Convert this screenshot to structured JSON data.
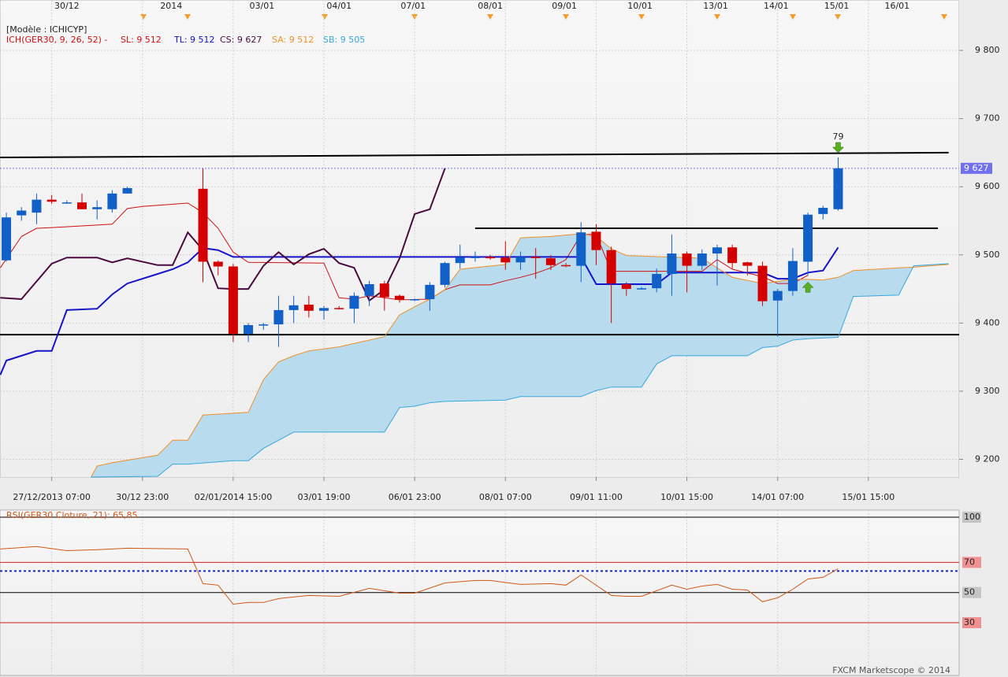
{
  "chart_data": [
    {
      "type": "candlestick",
      "model_label": "[Modèle : ICHICYP]",
      "indicator_label": "ICH(GER30, 9, 26, 52) -",
      "xlim": [
        -0.42,
        63
      ],
      "ylim": [
        9174,
        9874
      ],
      "yticks": [
        {
          "value": 9200,
          "label": "9 200"
        },
        {
          "value": 9300,
          "label": "9 300"
        },
        {
          "value": 9400,
          "label": "9 400"
        },
        {
          "value": 9500,
          "label": "9 500"
        },
        {
          "value": 9600,
          "label": "9 600"
        },
        {
          "value": 9700,
          "label": "9 700"
        },
        {
          "value": 9800,
          "label": "9 800"
        }
      ],
      "xticks": [
        {
          "value": 3,
          "label": "27/12/2013 07:00"
        },
        {
          "value": 9,
          "label": "30/12 23:00"
        },
        {
          "value": 15,
          "label": "02/01/2014 15:00"
        },
        {
          "value": 21,
          "label": "03/01 19:00"
        },
        {
          "value": 27,
          "label": "06/01 23:00"
        },
        {
          "value": 33,
          "label": "08/01 07:00"
        },
        {
          "value": 39,
          "label": "09/01 11:00"
        },
        {
          "value": 45,
          "label": "10/01 15:00"
        },
        {
          "value": 51,
          "label": "14/01 07:00"
        },
        {
          "value": 57,
          "label": "15/01 15:00"
        }
      ],
      "top_labels": [
        {
          "value": 4,
          "label": "30/12"
        },
        {
          "value": 10.9,
          "label": "2014"
        },
        {
          "value": 16.9,
          "label": "03/01"
        },
        {
          "value": 22,
          "label": "04/01"
        },
        {
          "value": 26.9,
          "label": "07/01"
        },
        {
          "value": 32,
          "label": "08/01"
        },
        {
          "value": 36.9,
          "label": "09/01"
        },
        {
          "value": 41.9,
          "label": "10/01"
        },
        {
          "value": 46.9,
          "label": "13/01"
        },
        {
          "value": 50.9,
          "label": "14/01"
        },
        {
          "value": 54.9,
          "label": "15/01"
        },
        {
          "value": 58.9,
          "label": "16/01"
        }
      ],
      "grid": true,
      "candles": {
        "up_color": "#1060c8",
        "down_color": "#d40000",
        "x": [
          0,
          1,
          2,
          3,
          4,
          5,
          6,
          7,
          8,
          13,
          14,
          15,
          16,
          17,
          18,
          19,
          20,
          21,
          22,
          23,
          24,
          25,
          26,
          27,
          28,
          29,
          30,
          31,
          32,
          33,
          34,
          35,
          36,
          37,
          38,
          39,
          40,
          41,
          42,
          43,
          44,
          45,
          46,
          47,
          48,
          49,
          50,
          51,
          52,
          53,
          54,
          55
        ],
        "open": [
          9492,
          9558,
          9562,
          9581,
          9577,
          9577,
          9567,
          9567,
          9590,
          9597,
          9490,
          9483,
          9384,
          9397,
          9398,
          9419,
          9427,
          9418,
          9422,
          9421,
          9440,
          9458,
          9440,
          9434,
          9435,
          9456,
          9488,
          9496,
          9497,
          9496,
          9489,
          9497,
          9495,
          9485,
          9484,
          9534,
          9507,
          9457,
          9451,
          9451,
          9472,
          9502,
          9484,
          9502,
          9511,
          9489,
          9484,
          9433,
          9447,
          9490,
          9560,
          9567
        ],
        "high": [
          9562,
          9570,
          9590,
          9588,
          9580,
          9590,
          9580,
          9595,
          9600,
          9627,
          9492,
          9487,
          9400,
          9400,
          9440,
          9440,
          9440,
          9425,
          9425,
          9445,
          9462,
          9462,
          9442,
          9436,
          9460,
          9490,
          9515,
          9505,
          9500,
          9520,
          9505,
          9510,
          9500,
          9488,
          9548,
          9545,
          9512,
          9460,
          9453,
          9480,
          9530,
          9505,
          9508,
          9515,
          9515,
          9490,
          9490,
          9450,
          9510,
          9562,
          9572,
          9643
        ],
        "low": [
          9490,
          9550,
          9545,
          9575,
          9575,
          9567,
          9552,
          9562,
          9590,
          9460,
          9470,
          9372,
          9372,
          9390,
          9365,
          9400,
          9408,
          9405,
          9420,
          9400,
          9425,
          9418,
          9430,
          9432,
          9418,
          9452,
          9480,
          9490,
          9493,
          9478,
          9478,
          9465,
          9478,
          9482,
          9460,
          9485,
          9400,
          9440,
          9449,
          9445,
          9440,
          9445,
          9478,
          9455,
          9480,
          9470,
          9425,
          9380,
          9440,
          9470,
          9552,
          9565
        ],
        "close": [
          9555,
          9565,
          9581,
          9578,
          9577,
          9567,
          9570,
          9590,
          9598,
          9490,
          9483,
          9384,
          9397,
          9398,
          9419,
          9426,
          9418,
          9422,
          9421,
          9440,
          9457,
          9438,
          9434,
          9435,
          9456,
          9488,
          9496,
          9497,
          9495,
          9489,
          9497,
          9496,
          9485,
          9484,
          9533,
          9507,
          9458,
          9450,
          9451,
          9472,
          9502,
          9484,
          9502,
          9511,
          9488,
          9484,
          9432,
          9447,
          9491,
          9559,
          9569,
          9627
        ]
      },
      "cloud_color": "#b8dcee",
      "series": [
        {
          "name": "SL: 9 512",
          "color": "#d01010",
          "x": [
            -0.4,
            1,
            2,
            3,
            7,
            8,
            9,
            12,
            13,
            14,
            15,
            16,
            21,
            22,
            23,
            24,
            25,
            26,
            28,
            29,
            30,
            32,
            33,
            34,
            35,
            36,
            37,
            38,
            39,
            40,
            46,
            47,
            48,
            50,
            51,
            52,
            53
          ],
          "values": [
            9481,
            9527,
            9539,
            9540,
            9545,
            9568,
            9571,
            9576,
            9562,
            9539,
            9504,
            9489,
            9488,
            9437,
            9435,
            9440,
            9437,
            9434,
            9435,
            9449,
            9456,
            9456,
            9462,
            9467,
            9473,
            9481,
            9493,
            9530,
            9530,
            9476,
            9476,
            9493,
            9479,
            9468,
            9458,
            9458,
            9470
          ]
        },
        {
          "name": "TL: 9 512",
          "color": "#1414c8",
          "x": [
            -0.4,
            0,
            2,
            3,
            4,
            6,
            7,
            8,
            10,
            11,
            12,
            13,
            14,
            15,
            38,
            39,
            43,
            44,
            50,
            51,
            52,
            53,
            54,
            55
          ],
          "values": [
            9324,
            9345,
            9359,
            9359,
            9419,
            9421,
            9442,
            9458,
            9472,
            9479,
            9489,
            9510,
            9507,
            9497,
            9497,
            9457,
            9457,
            9474,
            9474,
            9465,
            9465,
            9474,
            9477,
            9511
          ]
        },
        {
          "name": "CS: 9 627",
          "color": "#4a0a40",
          "x": [
            -0.4,
            1,
            3,
            4,
            6,
            7,
            8,
            10,
            11,
            12,
            13,
            14,
            15,
            16,
            17,
            18,
            19,
            20,
            21,
            22,
            23,
            24,
            25,
            26,
            27,
            28,
            29
          ],
          "values": [
            9437,
            9435,
            9487,
            9496,
            9496,
            9489,
            9495,
            9485,
            9485,
            9533,
            9507,
            9451,
            9450,
            9450,
            9484,
            9504,
            9486,
            9501,
            9509,
            9488,
            9481,
            9433,
            9449,
            9495,
            9560,
            9567,
            9627
          ]
        },
        {
          "name": "SA: 9 512",
          "color": "#f0902a",
          "x": [
            5.6,
            6,
            7,
            10,
            11,
            12,
            13,
            16,
            17,
            18,
            19,
            20,
            22,
            23,
            25,
            26,
            27,
            28,
            29,
            30,
            33,
            34,
            36,
            38,
            39,
            40,
            41,
            45,
            46,
            47,
            48,
            50,
            51,
            52,
            53,
            54,
            55,
            56,
            59,
            60,
            62.3
          ],
          "values": [
            9174,
            9190,
            9195,
            9206,
            9228,
            9228,
            9265,
            9269,
            9317,
            9343,
            9352,
            9359,
            9365,
            9370,
            9380,
            9412,
            9424,
            9435,
            9449,
            9479,
            9486,
            9525,
            9527,
            9531,
            9527,
            9509,
            9499,
            9496,
            9495,
            9481,
            9467,
            9458,
            9461,
            9464,
            9464,
            9463,
            9467,
            9477,
            9481,
            9482,
            9486
          ]
        },
        {
          "name": "SB: 9 505",
          "color": "#38a8dc",
          "x": [
            5.6,
            10,
            11,
            12,
            15,
            16,
            17,
            19,
            22,
            25,
            26,
            27,
            28,
            29,
            33,
            34,
            38,
            39,
            40,
            42,
            43,
            44,
            49,
            50,
            51,
            52,
            53,
            55,
            56,
            59,
            60,
            62.3
          ],
          "values": [
            9174,
            9175,
            9193,
            9193,
            9198,
            9198,
            9216,
            9240,
            9240,
            9240,
            9276,
            9278,
            9283,
            9285,
            9287,
            9292,
            9292,
            9301,
            9306,
            9306,
            9340,
            9352,
            9352,
            9364,
            9366,
            9375,
            9377,
            9379,
            9439,
            9441,
            9484,
            9487
          ]
        }
      ],
      "trend_line_color": "#000000",
      "trend_lines": [
        {
          "x": [
            -0.42,
            62.3
          ],
          "values": [
            9643,
            9650
          ]
        },
        {
          "x": [
            -0.42,
            63
          ],
          "values": [
            9383,
            9383
          ]
        },
        {
          "x": [
            31,
            61.6
          ],
          "values": [
            9539,
            9539
          ]
        }
      ],
      "last_price": {
        "value": 9627,
        "label": "9 627",
        "color": "#7070f0"
      },
      "annotations": [
        {
          "text": "79",
          "x": 55,
          "y": 9673
        }
      ],
      "arrows": [
        {
          "x": 55,
          "y": 9658,
          "direction": "down",
          "color": "#58b020"
        },
        {
          "x": 53,
          "y": 9452,
          "direction": "up",
          "color": "#58b020"
        }
      ]
    },
    {
      "type": "line",
      "title": "RSI(GER30 Cloture, 21): 65,85",
      "color": "#d05818",
      "ylim": [
        -5,
        104.7
      ],
      "yticks": [
        30,
        50,
        70,
        100
      ],
      "level_colors": [
        "#d02020",
        "#000000",
        "#d02020",
        "#000000"
      ],
      "current_level": 64.3,
      "current_level_color": "#1428c8",
      "x": [
        -0.4,
        2,
        4,
        6,
        8,
        12,
        13,
        14,
        15,
        16,
        17,
        18,
        20,
        22,
        24,
        26,
        27,
        29,
        31,
        32,
        34,
        36,
        37,
        38,
        40,
        41,
        42,
        44,
        45,
        46,
        47,
        48,
        49,
        50,
        51,
        52,
        53,
        54,
        55
      ],
      "values": [
        78.9,
        80.5,
        77.8,
        78.4,
        79.4,
        78.9,
        55.9,
        54.9,
        42.3,
        43.4,
        43.4,
        46.0,
        48.1,
        47.5,
        52.8,
        49.6,
        49.6,
        56.4,
        58.0,
        58.0,
        55.4,
        55.9,
        54.9,
        61.7,
        48.1,
        47.5,
        47.5,
        54.9,
        52.2,
        54.3,
        55.4,
        52.2,
        51.7,
        43.9,
        46.5,
        52.2,
        59.0,
        60.1,
        65.85
      ]
    }
  ],
  "footer": "FXCM Marketscope © 2014"
}
